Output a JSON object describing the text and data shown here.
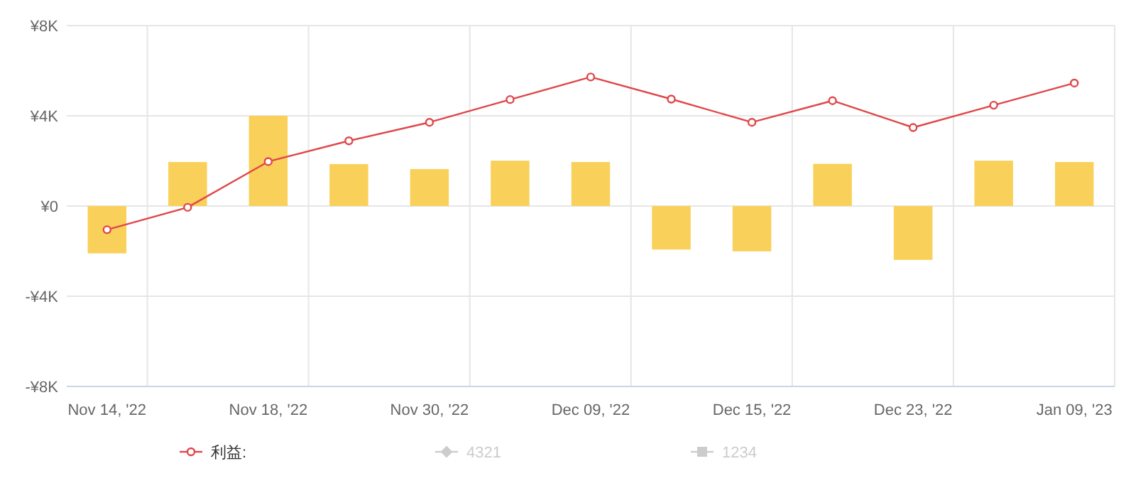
{
  "chart_data": {
    "type": "bar",
    "categories": [
      "Nov 14, '22",
      null,
      "Nov 18, '22",
      null,
      "Nov 30, '22",
      null,
      "Dec 09, '22",
      null,
      "Dec 15, '22",
      null,
      "Dec 23, '22",
      null,
      "Jan 09, '23"
    ],
    "series": [
      {
        "color": "#f9d15a",
        "values": [
          -2100,
          1950,
          4000,
          1860,
          1640,
          2010,
          1950,
          -1930,
          -2010,
          1870,
          -2390,
          2010,
          1950
        ]
      },
      {
        "type": "line",
        "name": "利益:",
        "color": "#e0474a",
        "marker": "circle",
        "values": [
          -1050,
          -60,
          1970,
          2890,
          3710,
          4720,
          5720,
          4740,
          3710,
          4670,
          3480,
          4470,
          5450
        ]
      },
      {
        "type": "line",
        "name": "4321",
        "color": "#cccccc",
        "marker": "diamond",
        "values": [
          null,
          null,
          null,
          null,
          null,
          null,
          null,
          null,
          null,
          null,
          null,
          null,
          null
        ]
      },
      {
        "type": "line",
        "name": "1234",
        "color": "#cccccc",
        "marker": "square",
        "values": [
          null,
          null,
          null,
          null,
          null,
          null,
          null,
          null,
          null,
          null,
          null,
          null,
          null
        ]
      }
    ],
    "ylim": [
      -8000,
      8000
    ],
    "yticks": [
      {
        "value": -8000,
        "label": "-¥8K"
      },
      {
        "value": -4000,
        "label": "-¥4K"
      },
      {
        "value": 0,
        "label": "¥0"
      },
      {
        "value": 4000,
        "label": "¥4K"
      },
      {
        "value": 8000,
        "label": "¥8K"
      }
    ],
    "grid": true,
    "legend": "bottom",
    "line_style": "solid"
  }
}
